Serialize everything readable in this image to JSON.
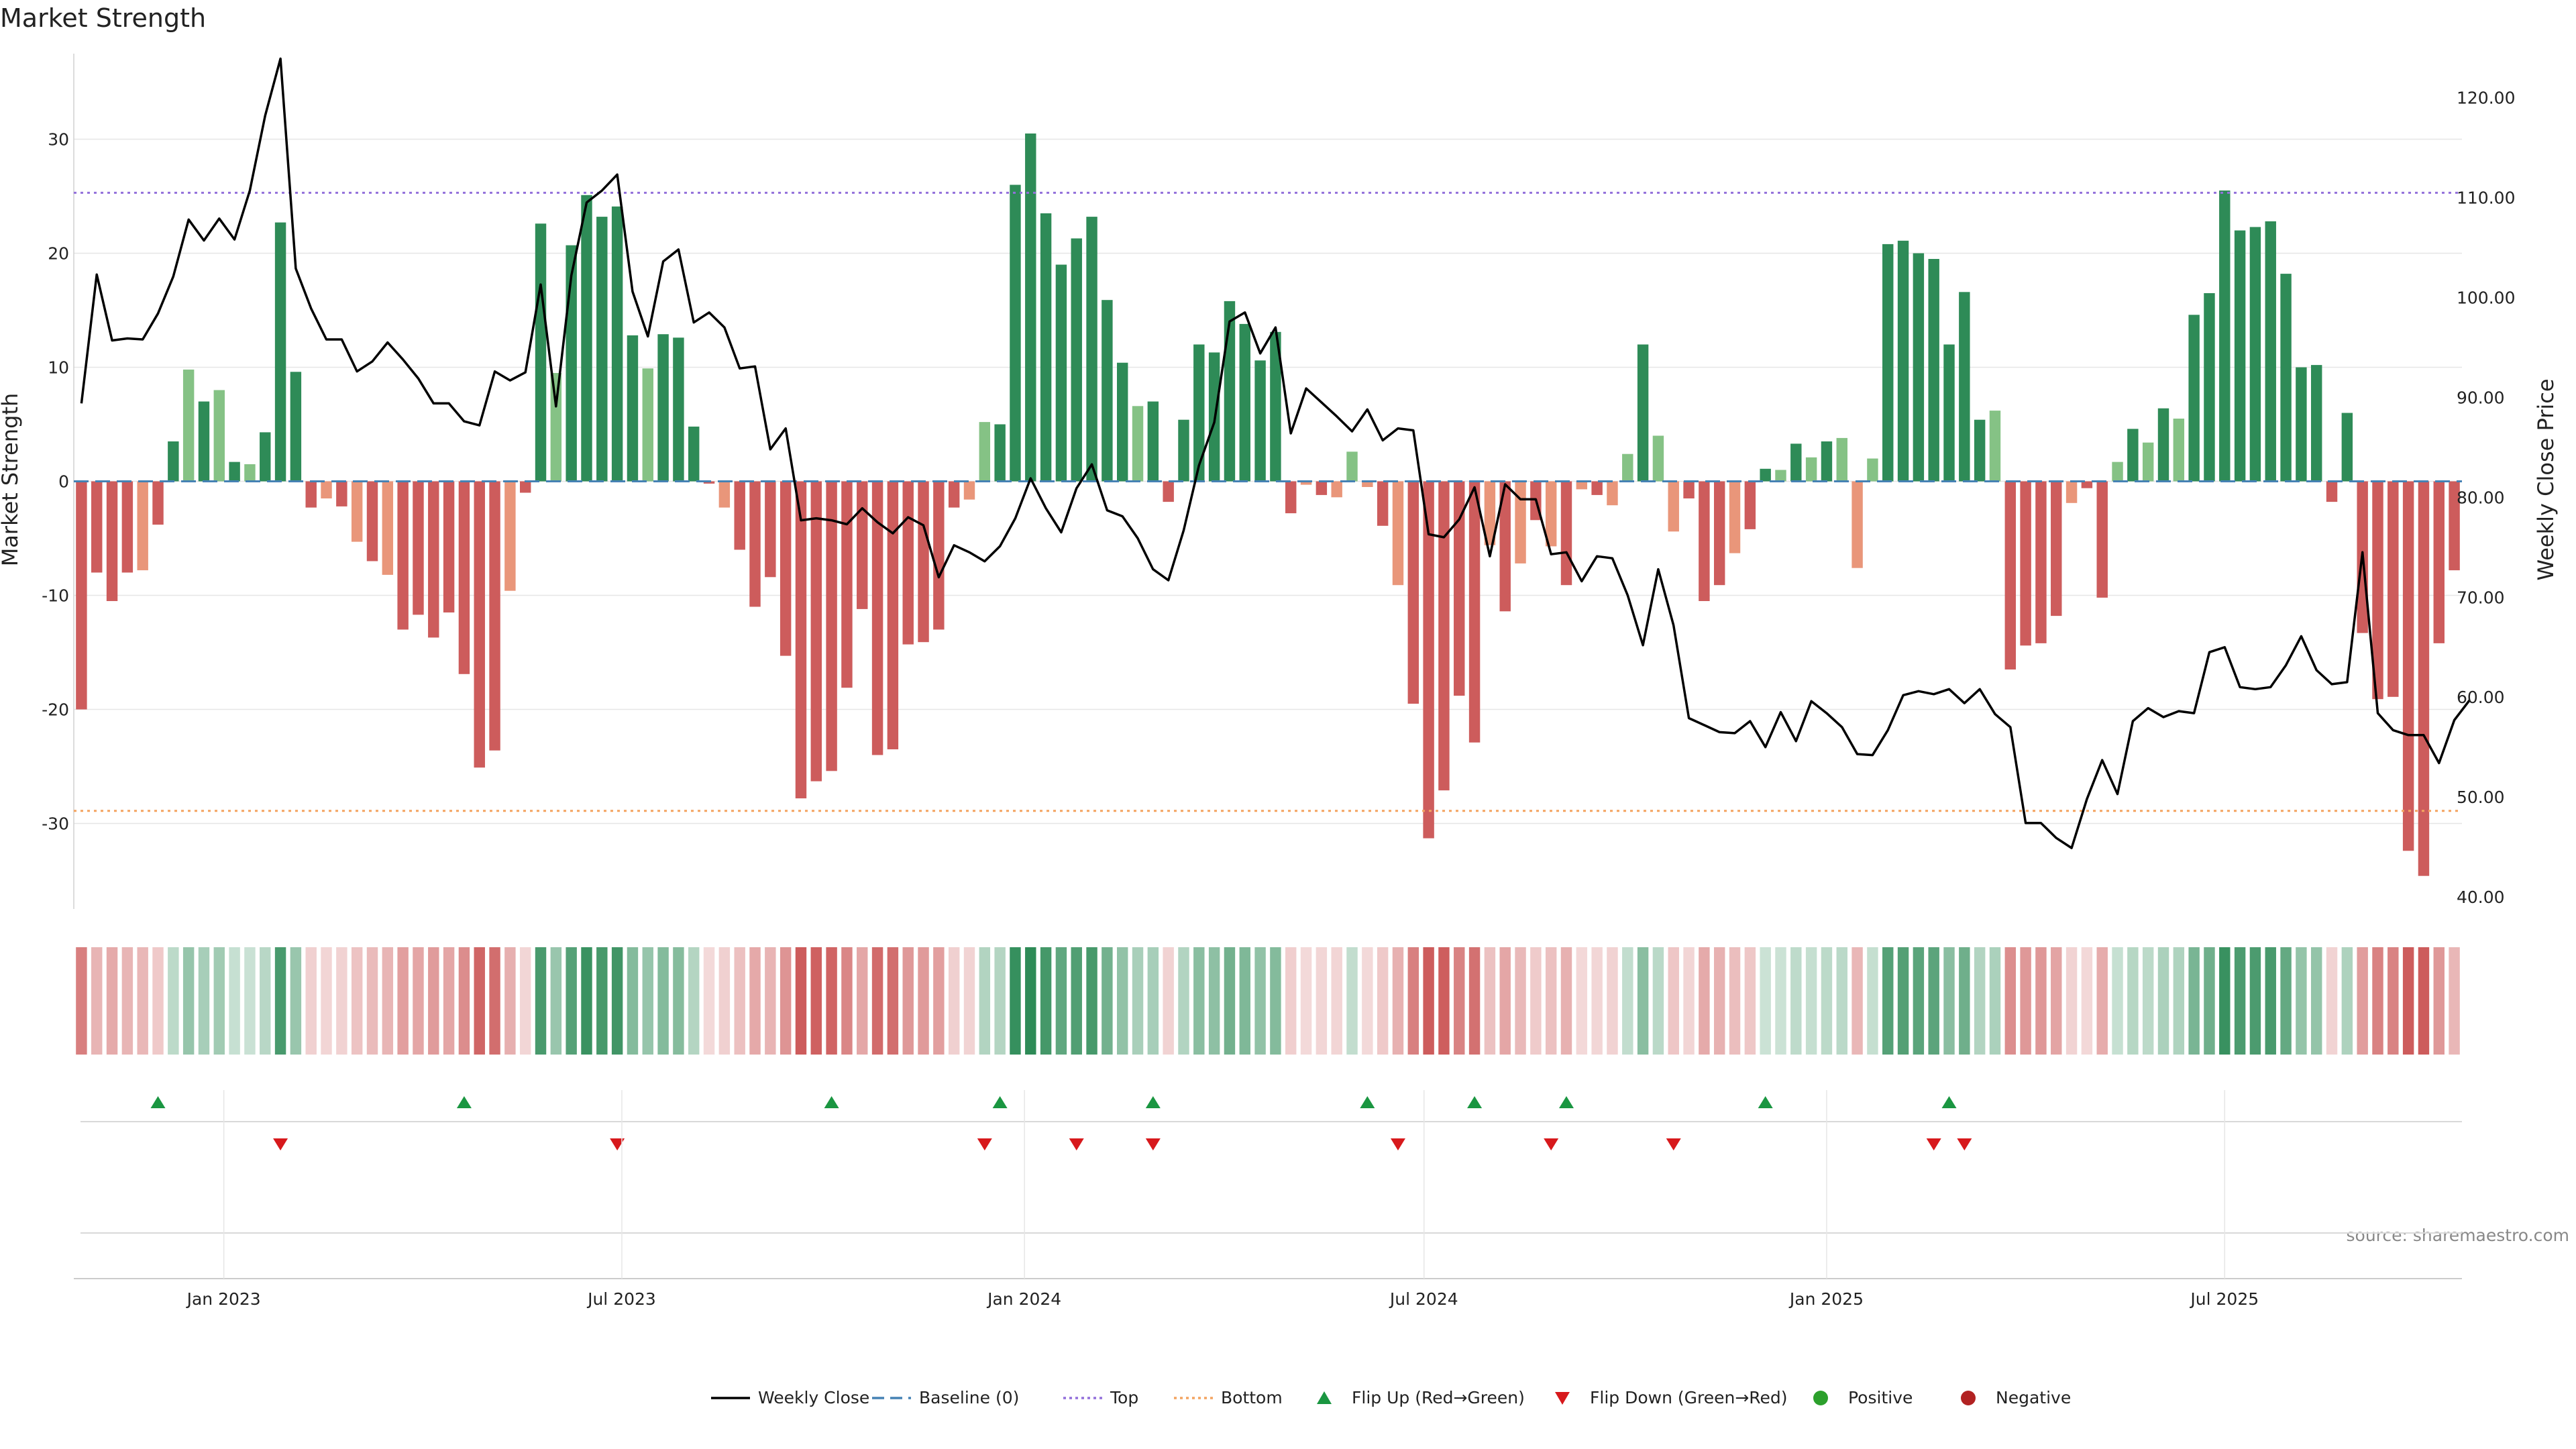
{
  "chart_data": {
    "type": "bar",
    "title": "Market Strength",
    "ylabel_left": "Market Strength",
    "ylabel_right": "Weekly Close Price",
    "source": "source: sharemaestro.com",
    "ylim_left": [
      -37.5,
      37.5
    ],
    "ylim_right": [
      38.8,
      124.4
    ],
    "yticks_left": [
      -30,
      -20,
      -10,
      0,
      10,
      20,
      30
    ],
    "yticks_right": [
      "40.00",
      "50.00",
      "60.00",
      "70.00",
      "80.00",
      "90.00",
      "100.00",
      "110.00",
      "120.00"
    ],
    "xticks": [
      {
        "label": "Jan 2023",
        "index": 9.3
      },
      {
        "label": "Jul 2023",
        "index": 35.3
      },
      {
        "label": "Jan 2024",
        "index": 61.6
      },
      {
        "label": "Jul 2024",
        "index": 87.7
      },
      {
        "label": "Jan 2025",
        "index": 114.0
      },
      {
        "label": "Jul 2025",
        "index": 140.0
      }
    ],
    "reference_lines": {
      "top": 25.3,
      "bottom": -28.9,
      "baseline": 0
    },
    "strength": [
      -20,
      -8,
      -10.5,
      -8,
      -7.8,
      -3.8,
      3.5,
      9.8,
      7,
      8,
      1.7,
      1.5,
      4.3,
      22.7,
      9.6,
      -2.3,
      -1.5,
      -2.2,
      -5.3,
      -7,
      -8.2,
      -13,
      -11.7,
      -13.7,
      -11.5,
      -16.9,
      -25.1,
      -23.6,
      -9.6,
      -1,
      22.6,
      9.5,
      20.7,
      25.1,
      23.2,
      24.1,
      12.8,
      9.9,
      12.9,
      12.6,
      4.8,
      -0.2,
      -2.3,
      -6,
      -11,
      -8.4,
      -15.3,
      -27.8,
      -26.3,
      -25.4,
      -18.1,
      -11.2,
      -24,
      -23.5,
      -14.3,
      -14.1,
      -13,
      -2.3,
      -1.6,
      5.2,
      5,
      26,
      30.5,
      23.5,
      19,
      21.3,
      23.2,
      15.9,
      10.4,
      6.6,
      7,
      -1.8,
      5.4,
      12,
      11.3,
      15.8,
      13.8,
      10.6,
      13.1,
      -2.8,
      -0.3,
      -1.2,
      -1.4,
      2.6,
      -0.5,
      -3.9,
      -9.1,
      -19.5,
      -31.3,
      -27.1,
      -18.8,
      -22.9,
      -5.6,
      -11.4,
      -7.2,
      -3.4,
      -5.7,
      -9.1,
      -0.7,
      -1.2,
      -2.1,
      2.4,
      12,
      4,
      -4.4,
      -1.5,
      -10.5,
      -9.1,
      -6.3,
      -4.2,
      1.1,
      1,
      3.3,
      2.1,
      3.5,
      3.8,
      -7.6,
      2,
      20.8,
      21.1,
      20,
      19.5,
      12,
      16.6,
      5.4,
      6.2,
      -16.5,
      -14.4,
      -14.2,
      -11.8,
      -1.9,
      -0.6,
      -10.2,
      1.7,
      4.6,
      3.4,
      6.4,
      5.5,
      14.6,
      16.5,
      25.5,
      22,
      22.3,
      22.8,
      18.2,
      10,
      10.2,
      -1.8,
      6,
      -13.3,
      -19.1,
      -18.9,
      -32.4,
      -34.6,
      -14.2,
      -7.8
    ],
    "weekly_close": [
      89.4,
      102.3,
      95.7,
      95.9,
      95.8,
      98.4,
      102.1,
      107.8,
      105.7,
      107.9,
      105.8,
      110.7,
      118.2,
      123.9,
      102.9,
      98.9,
      95.8,
      95.8,
      92.6,
      93.6,
      95.5,
      93.8,
      91.9,
      89.4,
      89.4,
      87.6,
      87.2,
      92.6,
      91.7,
      92.5,
      101.3,
      89.1,
      102.2,
      109.5,
      110.7,
      112.3,
      100.6,
      96.1,
      103.6,
      104.8,
      97.5,
      98.5,
      97,
      92.9,
      93.1,
      84.8,
      86.9,
      77.7,
      77.9,
      77.7,
      77.3,
      78.9,
      77.5,
      76.4,
      78,
      77.2,
      72,
      75.2,
      74.5,
      73.6,
      75.1,
      77.9,
      81.9,
      78.9,
      76.5,
      80.9,
      83.3,
      78.7,
      78.1,
      75.9,
      72.8,
      71.7,
      76.7,
      83.2,
      87.5,
      97.6,
      98.5,
      94.4,
      97,
      86.4,
      90.9,
      89.5,
      88.1,
      86.6,
      88.8,
      85.7,
      86.9,
      86.7,
      76.3,
      76,
      77.8,
      81,
      74.1,
      81.3,
      79.8,
      79.8,
      74.3,
      74.5,
      71.6,
      74.1,
      73.9,
      70.2,
      65.2,
      72.8,
      67.2,
      57.9,
      57.2,
      56.5,
      56.4,
      57.6,
      55,
      58.5,
      55.6,
      59.6,
      58.4,
      57,
      54.3,
      54.2,
      56.7,
      60.2,
      60.6,
      60.3,
      60.8,
      59.4,
      60.8,
      58.3,
      57,
      47.4,
      47.4,
      45.9,
      44.9,
      49.8,
      53.7,
      50.3,
      57.6,
      58.9,
      58,
      58.6,
      58.4,
      64.5,
      65,
      61,
      60.8,
      61,
      63.2,
      66.1,
      62.7,
      61.3,
      61.5,
      74.5,
      58.4,
      56.7,
      56.2,
      56.2,
      53.4,
      57.7,
      59.7
    ],
    "flip_up_idx": [
      5,
      25,
      49,
      60,
      70,
      84,
      91,
      97,
      110,
      122
    ],
    "flip_down_idx": [
      13,
      35,
      59,
      65,
      70,
      86,
      96,
      104,
      121,
      123
    ],
    "legend": [
      "Weekly Close",
      "Baseline (0)",
      "Top",
      "Bottom",
      "Flip Up (Red→Green)",
      "Flip Down (Green→Red)",
      "Positive",
      "Negative"
    ],
    "colors": {
      "pos_strong": "#2e8b57",
      "pos_light": "#85c285",
      "neg_strong": "#cd5c5c",
      "neg_light": "#e9967a",
      "line": "#000000",
      "baseline": "#4682b4",
      "top": "#9370db",
      "bottom": "#f4a460",
      "flip_up": "#1a9641",
      "flip_down": "#d7191c",
      "positive_dot": "#2ca02c",
      "negative_dot": "#b22222",
      "grid": "#e6e6e6"
    }
  }
}
